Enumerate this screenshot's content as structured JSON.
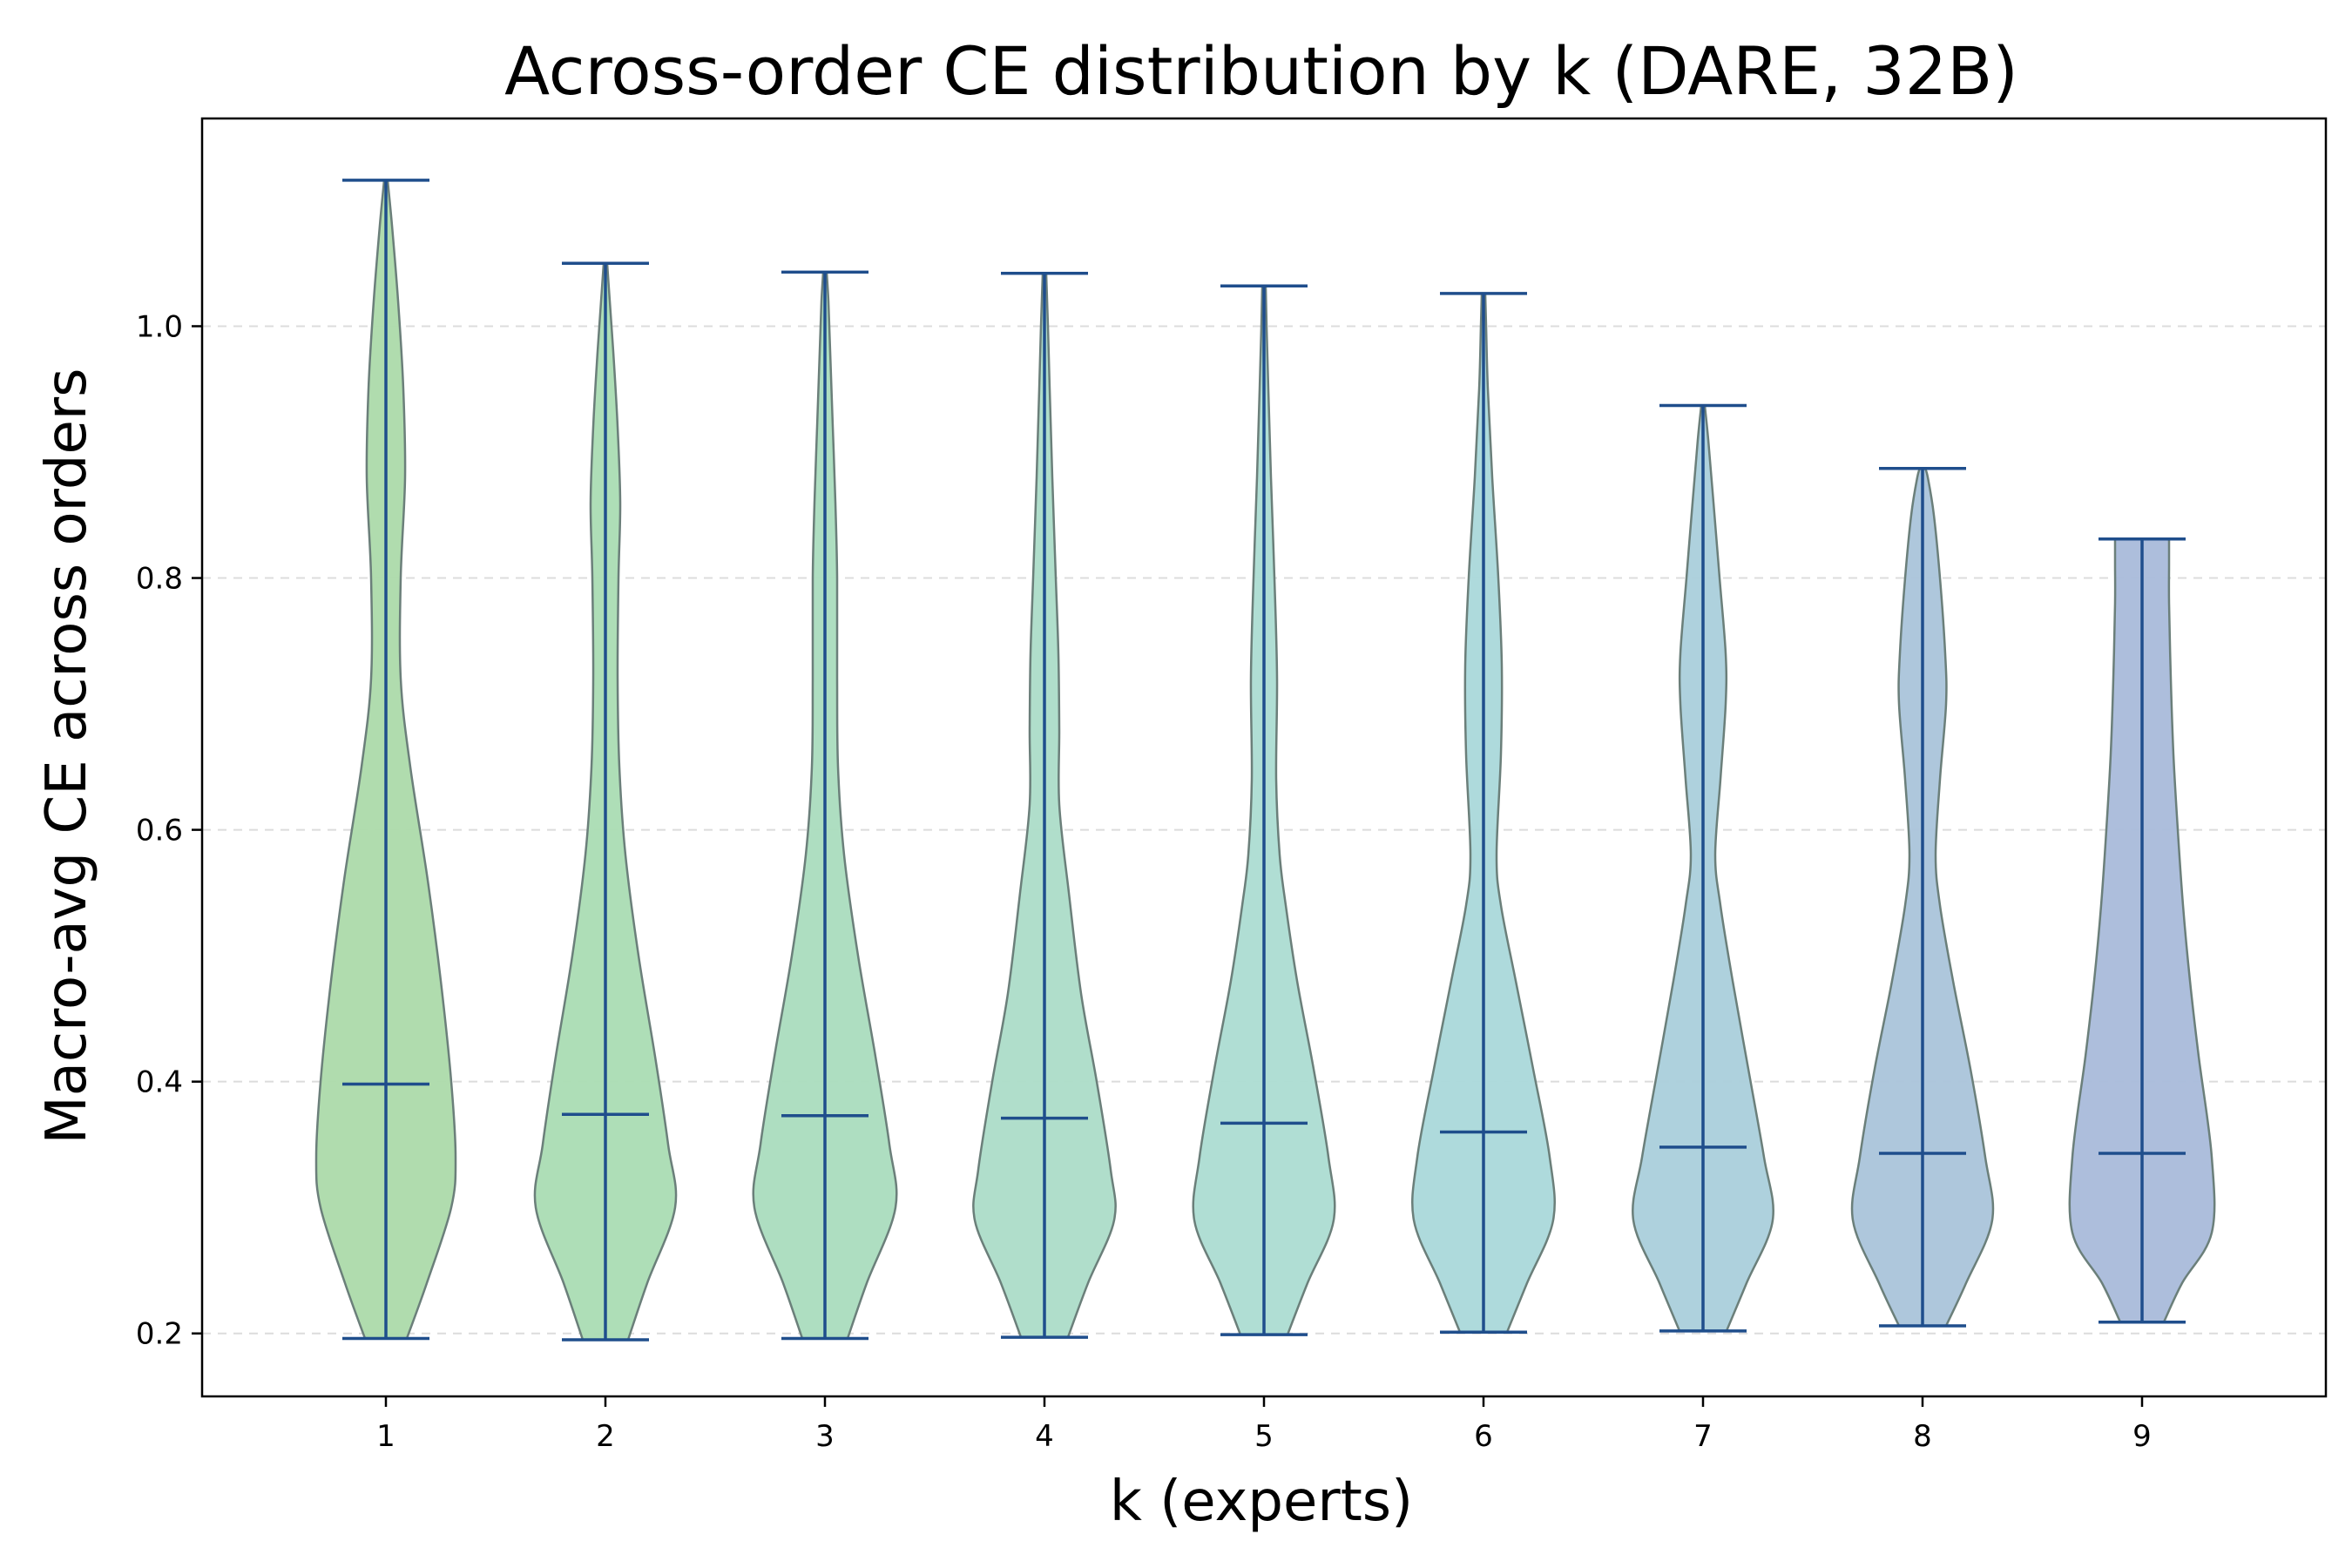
{
  "chart_data": {
    "type": "violin",
    "title": "Across-order CE distribution by k (DARE, 32B)",
    "xlabel": "k (experts)",
    "ylabel": "Macro-avg CE across orders",
    "ylim": [
      0.15,
      1.165
    ],
    "yticks": [
      0.2,
      0.4,
      0.6,
      0.8,
      1.0
    ],
    "ytick_labels": [
      "0.2",
      "0.4",
      "0.6",
      "0.8",
      "1.0"
    ],
    "grid": "horizontal dashed",
    "line_color": "#1f4e8c",
    "edge_color": "#6b7f7a",
    "categories": [
      "1",
      "2",
      "3",
      "4",
      "5",
      "6",
      "7",
      "8",
      "9"
    ],
    "series": [
      {
        "name": "1",
        "min": 0.196,
        "max": 1.116,
        "mean": 0.398,
        "color": "#acdaaa",
        "profile": [
          [
            0.196,
            0.24
          ],
          [
            0.24,
            0.47
          ],
          [
            0.3,
            0.75
          ],
          [
            0.34,
            0.8
          ],
          [
            0.4,
            0.75
          ],
          [
            0.48,
            0.63
          ],
          [
            0.56,
            0.48
          ],
          [
            0.65,
            0.28
          ],
          [
            0.72,
            0.17
          ],
          [
            0.8,
            0.17
          ],
          [
            0.88,
            0.22
          ],
          [
            0.95,
            0.2
          ],
          [
            1.02,
            0.14
          ],
          [
            1.08,
            0.07
          ],
          [
            1.116,
            0.02
          ]
        ]
      },
      {
        "name": "2",
        "min": 0.195,
        "max": 1.05,
        "mean": 0.374,
        "color": "#aadcb3",
        "profile": [
          [
            0.195,
            0.26
          ],
          [
            0.24,
            0.48
          ],
          [
            0.3,
            0.8
          ],
          [
            0.35,
            0.72
          ],
          [
            0.42,
            0.57
          ],
          [
            0.5,
            0.38
          ],
          [
            0.58,
            0.23
          ],
          [
            0.65,
            0.16
          ],
          [
            0.72,
            0.14
          ],
          [
            0.8,
            0.15
          ],
          [
            0.86,
            0.17
          ],
          [
            0.92,
            0.14
          ],
          [
            0.98,
            0.09
          ],
          [
            1.02,
            0.05
          ],
          [
            1.05,
            0.02
          ]
        ]
      },
      {
        "name": "3",
        "min": 0.196,
        "max": 1.043,
        "mean": 0.373,
        "color": "#aadcbe",
        "profile": [
          [
            0.196,
            0.26
          ],
          [
            0.24,
            0.48
          ],
          [
            0.3,
            0.81
          ],
          [
            0.35,
            0.74
          ],
          [
            0.42,
            0.58
          ],
          [
            0.5,
            0.38
          ],
          [
            0.58,
            0.22
          ],
          [
            0.65,
            0.15
          ],
          [
            0.72,
            0.14
          ],
          [
            0.8,
            0.14
          ],
          [
            0.86,
            0.12
          ],
          [
            0.92,
            0.09
          ],
          [
            0.98,
            0.06
          ],
          [
            1.02,
            0.04
          ],
          [
            1.043,
            0.02
          ]
        ]
      },
      {
        "name": "4",
        "min": 0.197,
        "max": 1.042,
        "mean": 0.371,
        "color": "#acdcc8",
        "profile": [
          [
            0.197,
            0.27
          ],
          [
            0.24,
            0.5
          ],
          [
            0.29,
            0.8
          ],
          [
            0.33,
            0.76
          ],
          [
            0.4,
            0.6
          ],
          [
            0.47,
            0.42
          ],
          [
            0.55,
            0.28
          ],
          [
            0.62,
            0.17
          ],
          [
            0.68,
            0.17
          ],
          [
            0.74,
            0.16
          ],
          [
            0.8,
            0.13
          ],
          [
            0.88,
            0.09
          ],
          [
            0.95,
            0.06
          ],
          [
            1.0,
            0.04
          ],
          [
            1.042,
            0.02
          ]
        ]
      },
      {
        "name": "5",
        "min": 0.199,
        "max": 1.032,
        "mean": 0.367,
        "color": "#acdcd2",
        "profile": [
          [
            0.199,
            0.27
          ],
          [
            0.24,
            0.5
          ],
          [
            0.29,
            0.8
          ],
          [
            0.34,
            0.74
          ],
          [
            0.41,
            0.57
          ],
          [
            0.48,
            0.38
          ],
          [
            0.54,
            0.25
          ],
          [
            0.58,
            0.18
          ],
          [
            0.64,
            0.14
          ],
          [
            0.72,
            0.15
          ],
          [
            0.8,
            0.12
          ],
          [
            0.88,
            0.08
          ],
          [
            0.95,
            0.05
          ],
          [
            1.0,
            0.03
          ],
          [
            1.032,
            0.02
          ]
        ]
      },
      {
        "name": "6",
        "min": 0.201,
        "max": 1.026,
        "mean": 0.36,
        "color": "#aad8da",
        "profile": [
          [
            0.201,
            0.27
          ],
          [
            0.24,
            0.5
          ],
          [
            0.29,
            0.8
          ],
          [
            0.34,
            0.76
          ],
          [
            0.41,
            0.57
          ],
          [
            0.48,
            0.37
          ],
          [
            0.54,
            0.2
          ],
          [
            0.58,
            0.15
          ],
          [
            0.66,
            0.2
          ],
          [
            0.73,
            0.21
          ],
          [
            0.8,
            0.17
          ],
          [
            0.88,
            0.1
          ],
          [
            0.95,
            0.05
          ],
          [
            1.0,
            0.03
          ],
          [
            1.026,
            0.02
          ]
        ]
      },
      {
        "name": "7",
        "min": 0.202,
        "max": 0.937,
        "mean": 0.348,
        "color": "#aacfdb",
        "profile": [
          [
            0.202,
            0.27
          ],
          [
            0.24,
            0.5
          ],
          [
            0.29,
            0.8
          ],
          [
            0.34,
            0.7
          ],
          [
            0.41,
            0.52
          ],
          [
            0.48,
            0.34
          ],
          [
            0.54,
            0.2
          ],
          [
            0.58,
            0.14
          ],
          [
            0.64,
            0.2
          ],
          [
            0.7,
            0.26
          ],
          [
            0.74,
            0.26
          ],
          [
            0.8,
            0.19
          ],
          [
            0.86,
            0.12
          ],
          [
            0.91,
            0.06
          ],
          [
            0.937,
            0.02
          ]
        ]
      },
      {
        "name": "8",
        "min": 0.206,
        "max": 0.887,
        "mean": 0.343,
        "color": "#aac4da",
        "profile": [
          [
            0.206,
            0.27
          ],
          [
            0.24,
            0.5
          ],
          [
            0.29,
            0.8
          ],
          [
            0.34,
            0.72
          ],
          [
            0.41,
            0.55
          ],
          [
            0.48,
            0.35
          ],
          [
            0.54,
            0.2
          ],
          [
            0.58,
            0.15
          ],
          [
            0.64,
            0.2
          ],
          [
            0.7,
            0.27
          ],
          [
            0.74,
            0.26
          ],
          [
            0.8,
            0.2
          ],
          [
            0.85,
            0.13
          ],
          [
            0.88,
            0.06
          ],
          [
            0.887,
            0.03
          ]
        ]
      },
      {
        "name": "9",
        "min": 0.209,
        "max": 0.831,
        "mean": 0.343,
        "color": "#a9bada",
        "profile": [
          [
            0.209,
            0.25
          ],
          [
            0.24,
            0.46
          ],
          [
            0.28,
            0.8
          ],
          [
            0.34,
            0.8
          ],
          [
            0.42,
            0.65
          ],
          [
            0.48,
            0.55
          ],
          [
            0.54,
            0.47
          ],
          [
            0.6,
            0.41
          ],
          [
            0.66,
            0.36
          ],
          [
            0.72,
            0.33
          ],
          [
            0.78,
            0.31
          ],
          [
            0.81,
            0.31
          ],
          [
            0.831,
            0.31
          ]
        ]
      }
    ]
  }
}
